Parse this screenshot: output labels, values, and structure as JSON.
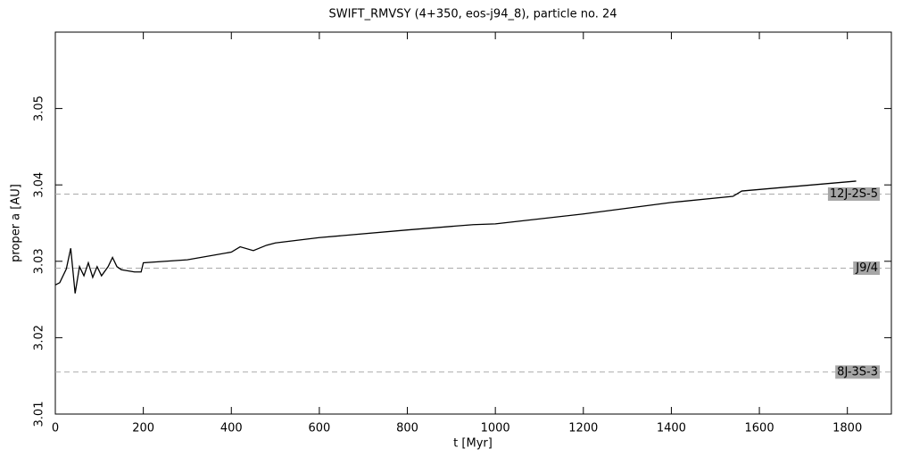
{
  "chart_data": {
    "type": "line",
    "title": "SWIFT_RMVSY (4+350, eos-j94_8), particle no. 24",
    "x_label": "t [Myr]",
    "y_label": "proper a [AU]",
    "xlim": [
      0,
      1900
    ],
    "ylim": [
      3.01,
      3.06
    ],
    "xticks": [
      0,
      200,
      400,
      600,
      800,
      1000,
      1200,
      1400,
      1600,
      1800
    ],
    "yticks": [
      3.01,
      3.02,
      3.03,
      3.04,
      3.05
    ],
    "reference_lines": [
      {
        "label": "12J-2S-5",
        "value": 3.0388
      },
      {
        "label": "J9/4",
        "value": 3.0291
      },
      {
        "label": "8J-3S-3",
        "value": 3.0155
      }
    ],
    "x": [
      0,
      10,
      25,
      35,
      45,
      55,
      65,
      75,
      85,
      95,
      105,
      120,
      130,
      140,
      150,
      180,
      195,
      200,
      300,
      400,
      420,
      450,
      480,
      500,
      600,
      800,
      950,
      1000,
      1200,
      1400,
      1540,
      1560,
      1700,
      1820
    ],
    "series": [
      {
        "name": "proper a",
        "color": "#000000",
        "values": [
          3.0269,
          3.0272,
          3.029,
          3.0317,
          3.0258,
          3.0293,
          3.0281,
          3.0298,
          3.0279,
          3.0293,
          3.0281,
          3.0293,
          3.0305,
          3.0293,
          3.0289,
          3.0286,
          3.0286,
          3.0298,
          3.0302,
          3.0312,
          3.0319,
          3.0314,
          3.0321,
          3.0324,
          3.0331,
          3.0341,
          3.0348,
          3.0349,
          3.0362,
          3.0377,
          3.0385,
          3.0392,
          3.0399,
          3.0405
        ]
      }
    ]
  }
}
